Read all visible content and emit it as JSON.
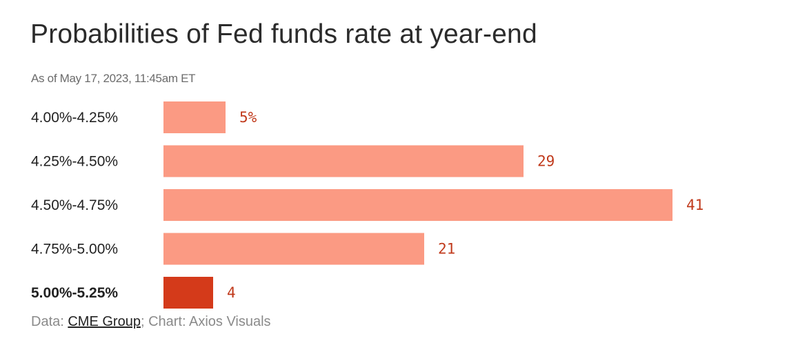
{
  "chart_data": {
    "type": "bar",
    "orientation": "horizontal",
    "title": "Probabilities of Fed funds rate at year-end",
    "subtitle": "As of May 17, 2023, 11:45am ET",
    "categories": [
      "4.00%-4.25%",
      "4.25%-4.50%",
      "4.50%-4.75%",
      "4.75%-5.00%",
      "5.00%-5.25%"
    ],
    "values": [
      5,
      29,
      41,
      21,
      4
    ],
    "value_labels": [
      "5%",
      "29",
      "41",
      "21",
      "4"
    ],
    "highlight_index": 4,
    "xlim": [
      0,
      41
    ],
    "grid": false,
    "legend": "none",
    "colors": {
      "bar": "#fb9a83",
      "bar_highlight": "#d43a1a",
      "value_text": "#c0391b"
    }
  },
  "footer": {
    "data_prefix": "Data: ",
    "source_link": "CME Group",
    "chart_credit": "; Chart: Axios Visuals"
  }
}
